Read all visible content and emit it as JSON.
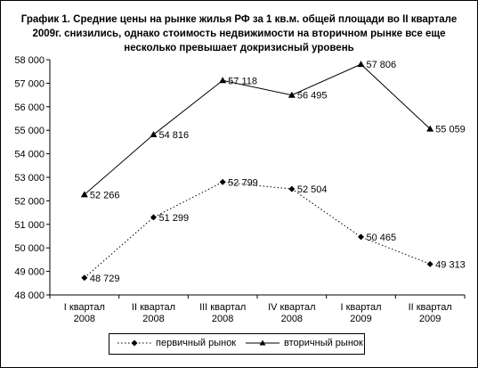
{
  "chart_data": {
    "type": "line",
    "title": "График 1. Средние цены на рынке жилья РФ за 1 кв.м. общей площади во II квартале 2009г. снизились, однако стоимость недвижимости на вторичном рынке все еще несколько превышает докризисный уровень",
    "categories": [
      [
        "I квартал",
        "2008"
      ],
      [
        "II квартал",
        "2008"
      ],
      [
        "III квартал",
        "2008"
      ],
      [
        "IV квартал",
        "2008"
      ],
      [
        "I квартал",
        "2009"
      ],
      [
        "II квартал",
        "2009"
      ]
    ],
    "ylim": [
      48000,
      58000
    ],
    "yticks": [
      48000,
      49000,
      50000,
      51000,
      52000,
      53000,
      54000,
      55000,
      56000,
      57000,
      58000
    ],
    "ytick_labels": [
      "48 000",
      "49 000",
      "50 000",
      "51 000",
      "52 000",
      "53 000",
      "54 000",
      "55 000",
      "56 000",
      "57 000",
      "58 000"
    ],
    "grid": false,
    "legend_position": "bottom",
    "series": [
      {
        "name": "первичный рынок",
        "values": [
          48729,
          51299,
          52799,
          52504,
          50465,
          49313
        ],
        "labels": [
          "48 729",
          "51 299",
          "52 799",
          "52 504",
          "50 465",
          "49 313"
        ],
        "marker": "diamond",
        "line_style": "dotted",
        "color": "#000000"
      },
      {
        "name": "вторичный рынок",
        "values": [
          52266,
          54816,
          57118,
          56495,
          57806,
          55059
        ],
        "labels": [
          "52 266",
          "54 816",
          "57 118",
          "56 495",
          "57 806",
          "55 059"
        ],
        "marker": "triangle",
        "line_style": "solid",
        "color": "#000000"
      }
    ]
  }
}
